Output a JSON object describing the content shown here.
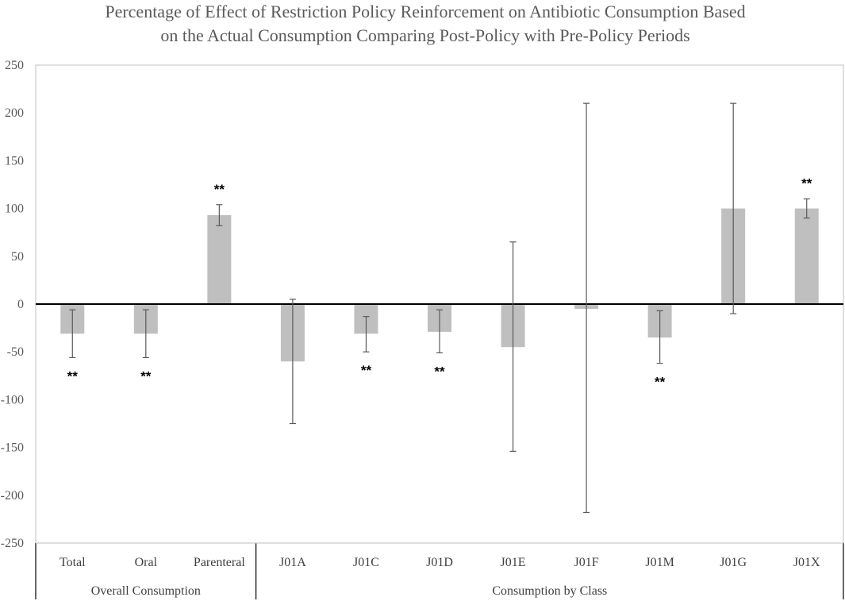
{
  "chart_data": {
    "type": "bar",
    "title_lines": [
      "Percentage of Effect of Restriction Policy Reinforcement on Antibiotic Consumption Based",
      "on the Actual Consumption Comparing Post-Policy with Pre-Policy Periods"
    ],
    "categories": [
      "Total",
      "Oral",
      "Parenteral",
      "J01A",
      "J01C",
      "J01D",
      "J01E",
      "J01F",
      "J01M",
      "J01G",
      "J01X"
    ],
    "values": [
      -31,
      -31,
      93,
      -60,
      -31,
      -29,
      -45,
      -5,
      -35,
      100,
      100
    ],
    "error_low": [
      -56,
      -56,
      82,
      -125,
      -50,
      -51,
      -154,
      -218,
      -62,
      -10,
      90
    ],
    "error_high": [
      -6,
      -6,
      104,
      5,
      -13,
      -6,
      65,
      210,
      -7,
      210,
      110
    ],
    "significance": [
      "**",
      "**",
      "**",
      "",
      "**",
      "**",
      "",
      "",
      "**",
      "",
      "**"
    ],
    "groups": [
      {
        "label": "Overall Consumption",
        "start": 0,
        "end": 2
      },
      {
        "label": "Consumption by Class",
        "start": 3,
        "end": 10
      }
    ],
    "yticks": [
      250,
      200,
      150,
      100,
      50,
      0,
      -50,
      -100,
      -150,
      -200,
      -250
    ],
    "ylim": [
      -250,
      250
    ],
    "xlabel": "",
    "ylabel": "",
    "legend": "none",
    "colors": {
      "bar": "#bfbfbf",
      "error": "#595959",
      "zero_line": "#000000",
      "frame": "#bfbfbf"
    }
  }
}
